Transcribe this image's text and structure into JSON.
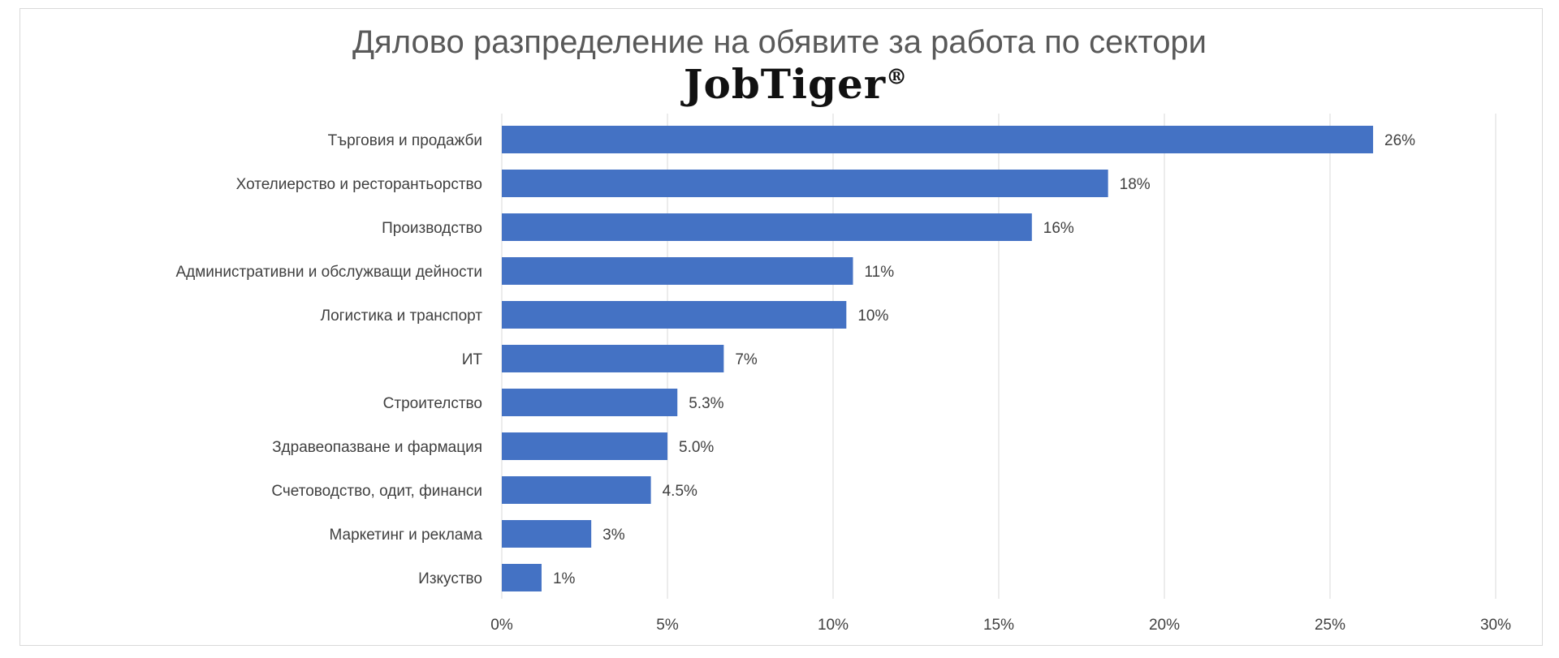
{
  "brand": {
    "logo_text": "JobTiger®"
  },
  "colors": {
    "bar": "#4472c4",
    "grid": "#d9d9d9",
    "text": "#404040",
    "title": "#595959"
  },
  "chart_data": {
    "type": "bar",
    "orientation": "horizontal",
    "title": "Дялово разпределение на обявите за работа по сектори",
    "categories": [
      "Търговия и продажби",
      "Хотелиерство и ресторантьорство",
      "Производство",
      "Административни и обслужващи дейности",
      "Логистика и транспорт",
      "ИТ",
      "Строителство",
      "Здравеопазване и фармация",
      "Счетоводство, одит, финанси",
      "Маркетинг и реклама",
      "Изкуство"
    ],
    "values": [
      26.3,
      18.3,
      16.0,
      10.6,
      10.4,
      6.7,
      5.3,
      5.0,
      4.5,
      2.7,
      1.2
    ],
    "data_labels": [
      "26%",
      "18%",
      "16%",
      "11%",
      "10%",
      "7%",
      "5.3%",
      "5.0%",
      "4.5%",
      "3%",
      "1%"
    ],
    "xlim": [
      0,
      30
    ],
    "x_ticks": [
      0,
      5,
      10,
      15,
      20,
      25,
      30
    ],
    "x_tick_labels": [
      "0%",
      "5%",
      "10%",
      "15%",
      "20%",
      "25%",
      "30%"
    ],
    "grid": true,
    "legend": "none"
  }
}
